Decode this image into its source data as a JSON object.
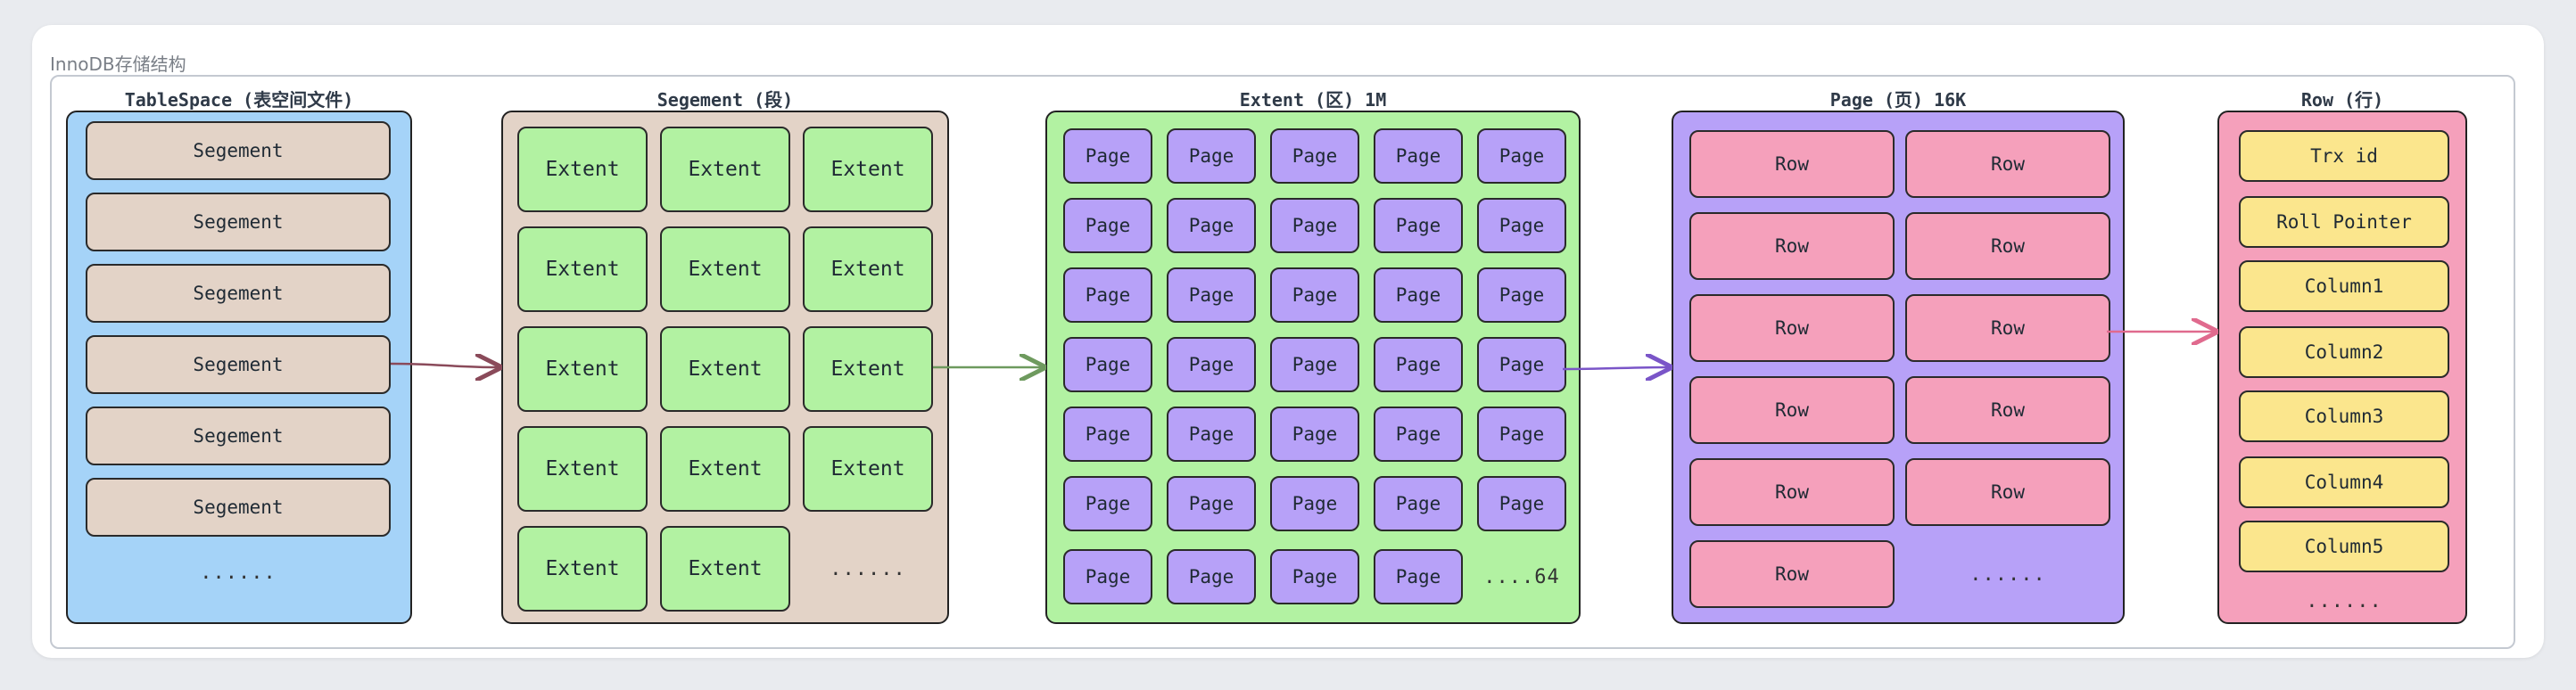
{
  "diagram_title": "InnoDB存储结构",
  "columns": {
    "tablespace": {
      "title": "TableSpace (表空间文件)",
      "items": [
        "Segement",
        "Segement",
        "Segement",
        "Segement",
        "Segement",
        "Segement"
      ],
      "more": "......"
    },
    "segment": {
      "title": "Segement (段)",
      "items": [
        "Extent",
        "Extent",
        "Extent",
        "Extent",
        "Extent",
        "Extent",
        "Extent",
        "Extent",
        "Extent",
        "Extent",
        "Extent",
        "Extent",
        "Extent",
        "Extent"
      ],
      "more": "......"
    },
    "extent": {
      "title": "Extent (区) 1M",
      "item_label": "Page",
      "more": "....64"
    },
    "page": {
      "title": "Page (页) 16K",
      "items": [
        "Row",
        "Row",
        "Row",
        "Row",
        "Row",
        "Row",
        "Row",
        "Row",
        "Row",
        "Row",
        "Row"
      ],
      "more": "......"
    },
    "row": {
      "title": "Row (行)",
      "items": [
        "Trx id",
        "Roll Pointer",
        "Column1",
        "Column2",
        "Column3",
        "Column4",
        "Column5"
      ],
      "more": "......"
    }
  },
  "colors": {
    "tablespace_bg": "#a5d3f8",
    "segment_bg": "#e3d3c7",
    "extent_bg": "#b2f2a2",
    "page_bg": "#b7a1f8",
    "row_bg": "#f5a0bb",
    "row_field_bg": "#fbe68d"
  }
}
